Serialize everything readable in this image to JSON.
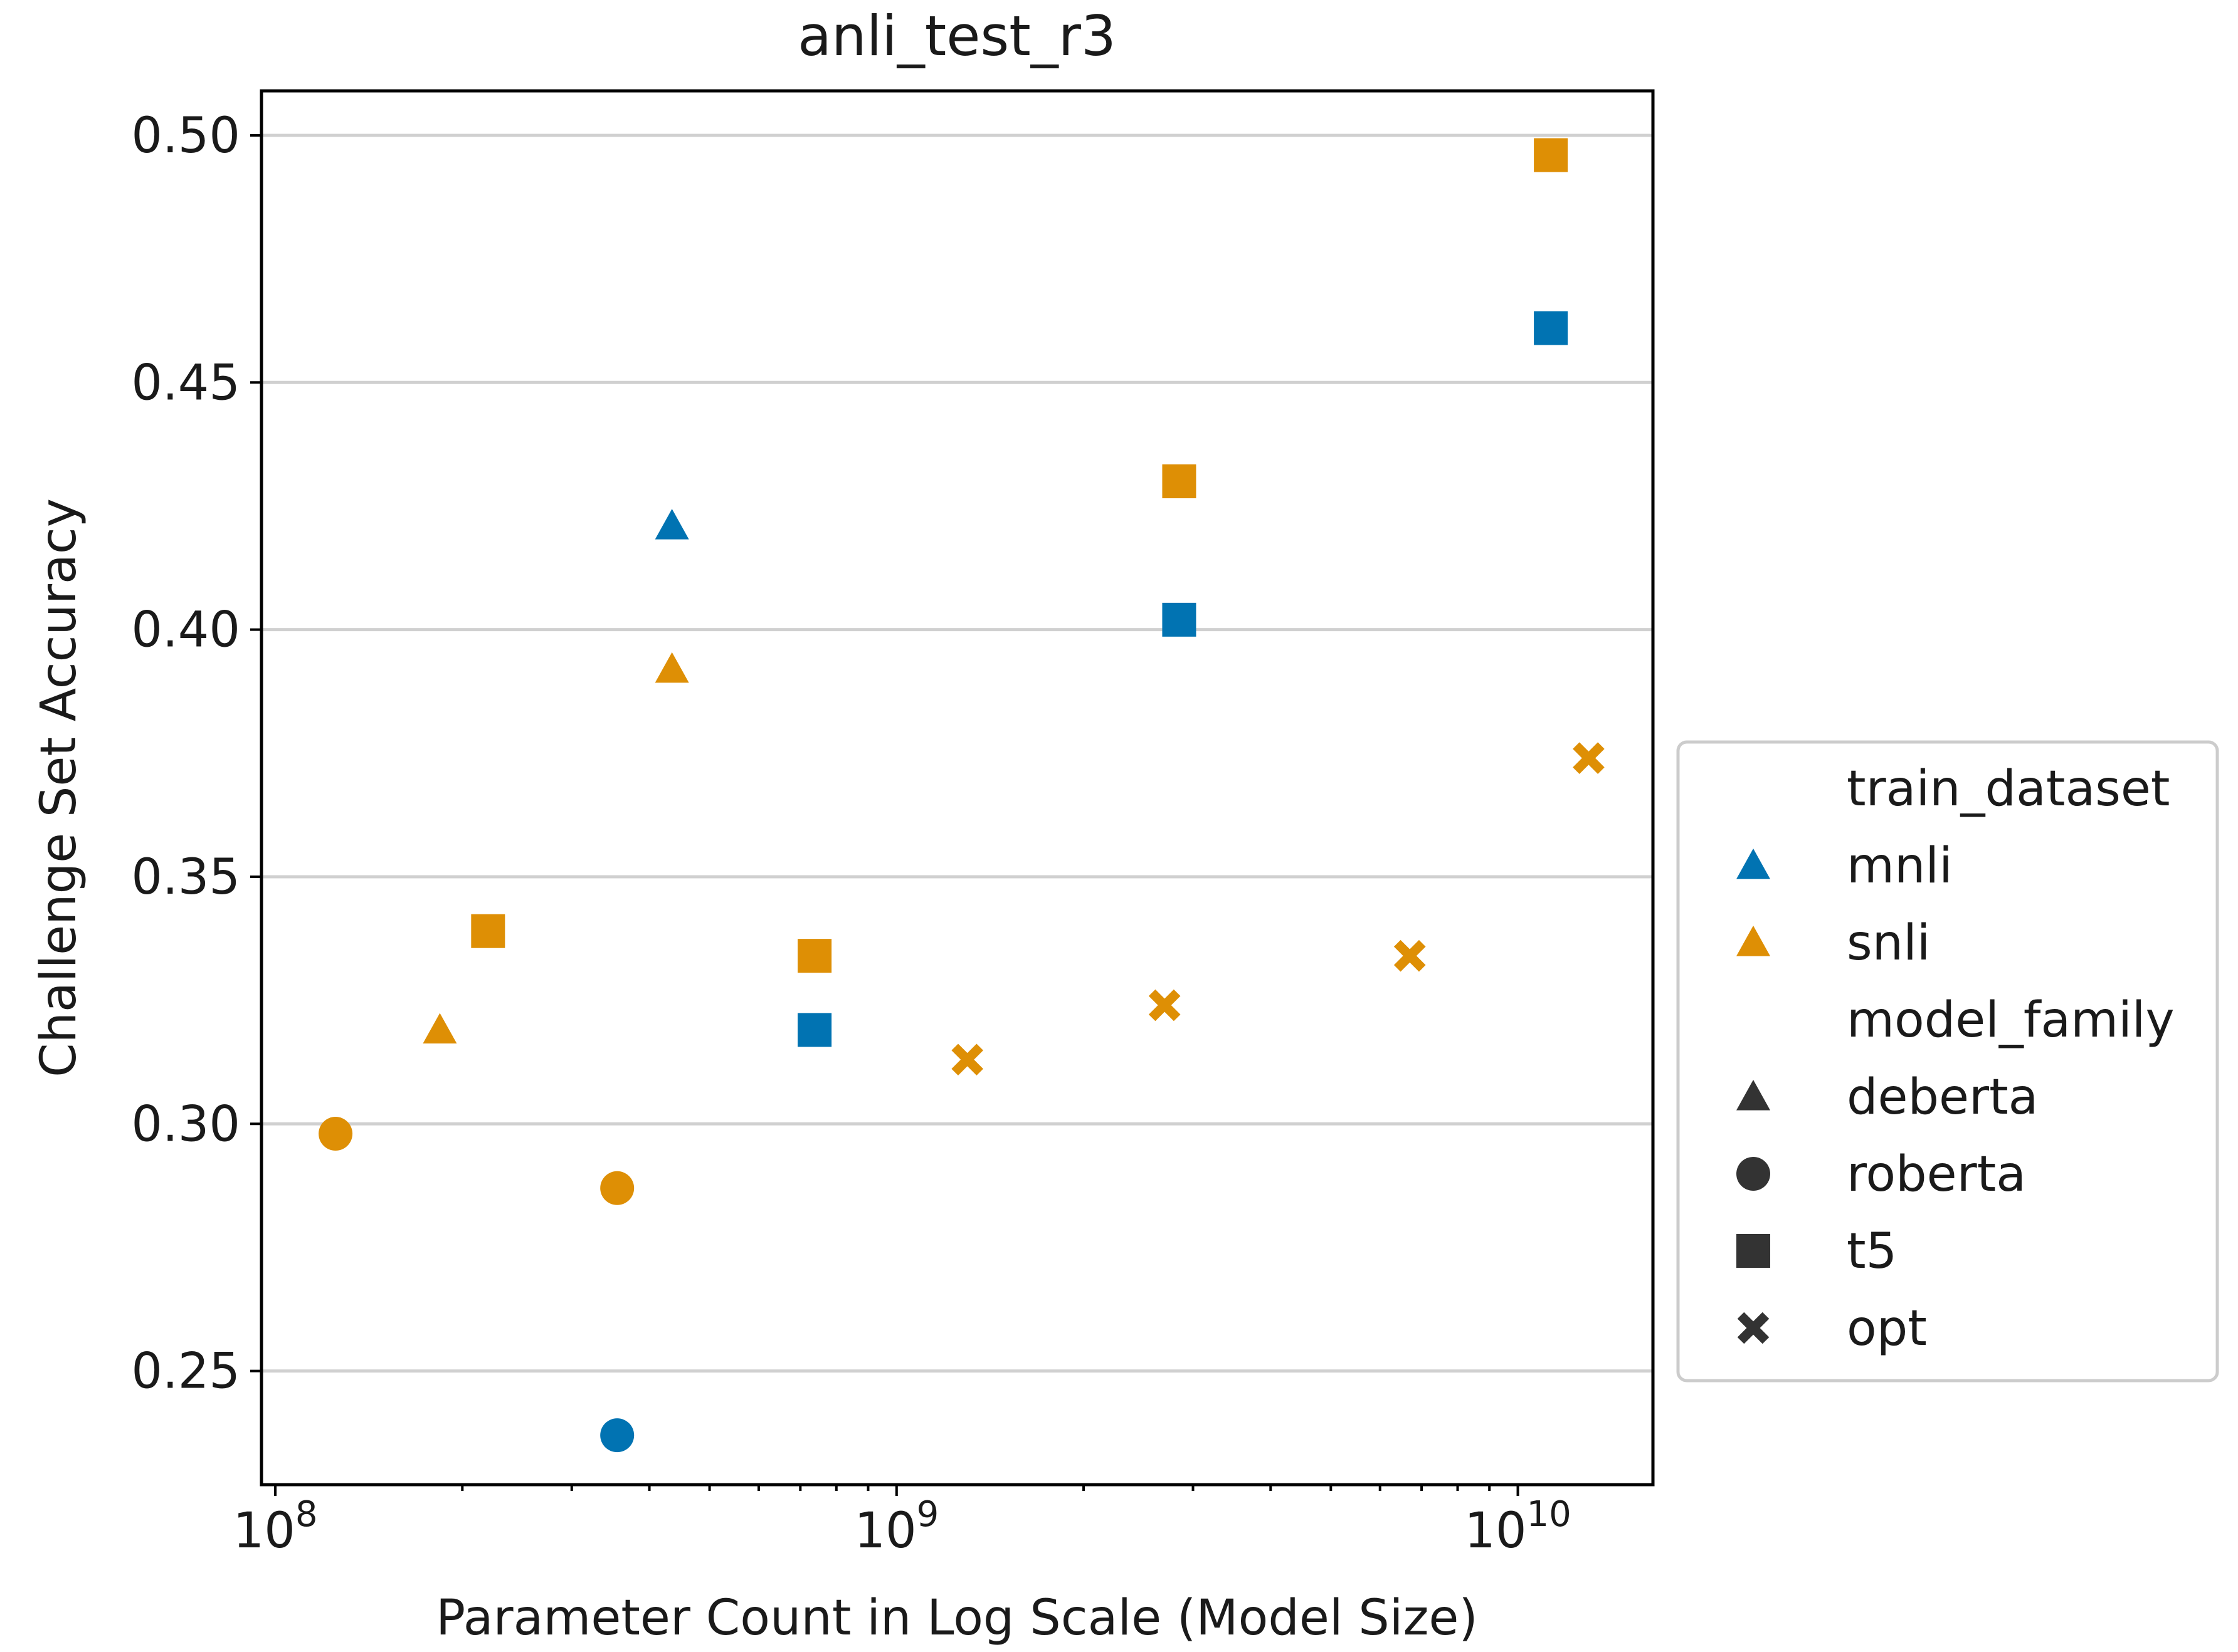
{
  "chart_data": {
    "type": "scatter",
    "title": "anli_test_r3",
    "xlabel": "Parameter Count in Log Scale (Model Size)",
    "ylabel": "Challenge Set Accuracy",
    "xscale": "log",
    "xlim": [
      95000000,
      16500000000
    ],
    "ylim": [
      0.227,
      0.509
    ],
    "x_ticks": [
      {
        "value": 100000000,
        "base": "10",
        "exp": "8"
      },
      {
        "value": 1000000000,
        "base": "10",
        "exp": "9"
      },
      {
        "value": 10000000000,
        "base": "10",
        "exp": "10"
      }
    ],
    "y_ticks": [
      0.25,
      0.3,
      0.35,
      0.4,
      0.45,
      0.5
    ],
    "y_tick_labels": [
      "0.25",
      "0.30",
      "0.35",
      "0.40",
      "0.45",
      "0.50"
    ],
    "grid": "y",
    "colors": {
      "mnli": "#0173b2",
      "snli": "#de8f05",
      "legend_marker": "#333333"
    },
    "points": [
      {
        "model_family": "deberta",
        "train_dataset": "mnli",
        "x": 435000000,
        "y": 0.421
      },
      {
        "model_family": "deberta",
        "train_dataset": "snli",
        "x": 435000000,
        "y": 0.392
      },
      {
        "model_family": "deberta",
        "train_dataset": "snli",
        "x": 184000000,
        "y": 0.319
      },
      {
        "model_family": "roberta",
        "train_dataset": "snli",
        "x": 125000000,
        "y": 0.298
      },
      {
        "model_family": "roberta",
        "train_dataset": "snli",
        "x": 355000000,
        "y": 0.287
      },
      {
        "model_family": "roberta",
        "train_dataset": "mnli",
        "x": 355000000,
        "y": 0.237
      },
      {
        "model_family": "t5",
        "train_dataset": "snli",
        "x": 220000000,
        "y": 0.339
      },
      {
        "model_family": "t5",
        "train_dataset": "snli",
        "x": 738000000,
        "y": 0.334
      },
      {
        "model_family": "t5",
        "train_dataset": "mnli",
        "x": 738000000,
        "y": 0.319
      },
      {
        "model_family": "t5",
        "train_dataset": "snli",
        "x": 2850000000,
        "y": 0.43
      },
      {
        "model_family": "t5",
        "train_dataset": "mnli",
        "x": 2850000000,
        "y": 0.402
      },
      {
        "model_family": "t5",
        "train_dataset": "snli",
        "x": 11300000000,
        "y": 0.496
      },
      {
        "model_family": "t5",
        "train_dataset": "mnli",
        "x": 11300000000,
        "y": 0.461
      },
      {
        "model_family": "opt",
        "train_dataset": "snli",
        "x": 1300000000,
        "y": 0.313
      },
      {
        "model_family": "opt",
        "train_dataset": "snli",
        "x": 2700000000,
        "y": 0.324
      },
      {
        "model_family": "opt",
        "train_dataset": "snli",
        "x": 6700000000,
        "y": 0.334
      },
      {
        "model_family": "opt",
        "train_dataset": "snli",
        "x": 13000000000,
        "y": 0.374
      }
    ],
    "legend": {
      "position": "center-right, outside",
      "entries": [
        {
          "label": "train_dataset",
          "kind": "header"
        },
        {
          "label": "mnli",
          "kind": "hue",
          "marker": "deberta",
          "color_key": "mnli"
        },
        {
          "label": "snli",
          "kind": "hue",
          "marker": "deberta",
          "color_key": "snli"
        },
        {
          "label": "model_family",
          "kind": "header"
        },
        {
          "label": "deberta",
          "kind": "style",
          "marker": "deberta"
        },
        {
          "label": "roberta",
          "kind": "style",
          "marker": "roberta"
        },
        {
          "label": "t5",
          "kind": "style",
          "marker": "t5"
        },
        {
          "label": "opt",
          "kind": "style",
          "marker": "opt"
        }
      ]
    }
  }
}
